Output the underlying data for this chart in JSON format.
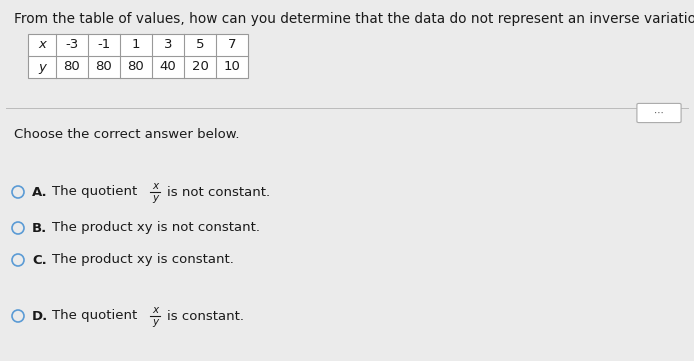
{
  "title": "From the table of values, how can you determine that the data do not represent an inverse variation?",
  "table_x_label": "x",
  "table_y_label": "y",
  "table_x_values": [
    "-3",
    "-1",
    "1",
    "3",
    "5",
    "7"
  ],
  "table_y_values": [
    "80",
    "80",
    "80",
    "40",
    "20",
    "10"
  ],
  "choose_text": "Choose the correct answer below.",
  "option_A_text1": "The quotient",
  "option_A_frac_num": "x",
  "option_A_frac_den": "y",
  "option_A_text2": "is not constant.",
  "option_B_text": "The product xy is not constant.",
  "option_C_text": "The product xy is constant.",
  "option_D_text1": "The quotient",
  "option_D_frac_num": "x",
  "option_D_frac_den": "y",
  "option_D_text2": "is constant.",
  "bg_color": "#ebebeb",
  "text_color": "#1a1a1a",
  "circle_color": "#5b9bd5",
  "separator_color": "#bbbbbb",
  "title_fontsize": 9.8,
  "body_fontsize": 9.5,
  "small_fontsize": 7.5,
  "table_fontsize": 9.5
}
